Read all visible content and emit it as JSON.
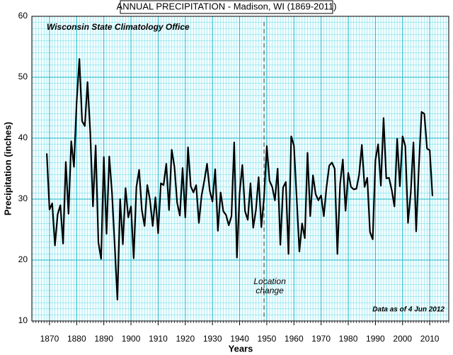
{
  "chart_data": {
    "type": "line",
    "title": "ANNUAL PRECIPITATION - Madison, WI (1869-2011)",
    "subtitle": "Wisconsin State Climatology Office",
    "note": "Data as of 4 Jun 2012",
    "x_label": "Years",
    "y_label": "Precipitation (inches)",
    "color": "#000000",
    "grid": true,
    "xlim": [
      1863.5,
      2017
    ],
    "ylim": [
      10,
      60
    ],
    "xticks": [
      1870,
      1880,
      1890,
      1900,
      1910,
      1920,
      1930,
      1940,
      1950,
      1960,
      1970,
      1980,
      1990,
      2000,
      2010
    ],
    "yticks": [
      10,
      20,
      30,
      40,
      50,
      60
    ],
    "annotation": {
      "text": [
        "Location",
        "change"
      ],
      "x": 1949
    },
    "x": [
      1869,
      1870,
      1871,
      1872,
      1873,
      1874,
      1875,
      1876,
      1877,
      1878,
      1879,
      1880,
      1881,
      1882,
      1883,
      1884,
      1885,
      1886,
      1887,
      1888,
      1889,
      1890,
      1891,
      1892,
      1893,
      1894,
      1895,
      1896,
      1897,
      1898,
      1899,
      1900,
      1901,
      1902,
      1903,
      1904,
      1905,
      1906,
      1907,
      1908,
      1909,
      1910,
      1911,
      1912,
      1913,
      1914,
      1915,
      1916,
      1917,
      1918,
      1919,
      1920,
      1921,
      1922,
      1923,
      1924,
      1925,
      1926,
      1927,
      1928,
      1929,
      1930,
      1931,
      1932,
      1933,
      1934,
      1935,
      1936,
      1937,
      1938,
      1939,
      1940,
      1941,
      1942,
      1943,
      1944,
      1945,
      1946,
      1947,
      1948,
      1949,
      1950,
      1951,
      1952,
      1953,
      1954,
      1955,
      1956,
      1957,
      1958,
      1959,
      1960,
      1961,
      1962,
      1963,
      1964,
      1965,
      1966,
      1967,
      1968,
      1969,
      1970,
      1971,
      1972,
      1973,
      1974,
      1975,
      1976,
      1977,
      1978,
      1979,
      1980,
      1981,
      1982,
      1983,
      1984,
      1985,
      1986,
      1987,
      1988,
      1989,
      1990,
      1991,
      1992,
      1993,
      1994,
      1995,
      1996,
      1997,
      1998,
      1999,
      2000,
      2001,
      2002,
      2003,
      2004,
      2005,
      2006,
      2007,
      2008,
      2009,
      2010,
      2011
    ],
    "values": [
      37.5,
      28.3,
      29.3,
      22.4,
      27.5,
      29.0,
      22.7,
      36.1,
      27.6,
      39.5,
      35.3,
      46.0,
      53.0,
      42.8,
      42.0,
      49.2,
      41.0,
      28.8,
      38.8,
      22.9,
      20.2,
      36.9,
      24.3,
      37.0,
      31.1,
      22.5,
      13.5,
      30.0,
      22.6,
      31.8,
      27.0,
      28.8,
      20.3,
      32.0,
      34.8,
      28.2,
      25.6,
      32.3,
      29.8,
      25.6,
      30.3,
      24.4,
      32.6,
      32.3,
      35.8,
      28.2,
      38.1,
      35.3,
      29.4,
      27.3,
      35.1,
      27.0,
      38.5,
      32.1,
      31.1,
      32.3,
      26.1,
      30.6,
      33.0,
      35.8,
      31.4,
      29.6,
      34.9,
      24.8,
      31.1,
      28.0,
      27.4,
      25.7,
      27.2,
      39.3,
      20.4,
      31.0,
      35.6,
      28.0,
      26.6,
      32.6,
      25.3,
      28.2,
      33.6,
      25.4,
      30.3,
      38.7,
      33.0,
      32.0,
      29.8,
      35.0,
      22.5,
      31.9,
      32.8,
      21.0,
      40.3,
      38.8,
      30.2,
      21.4,
      26.0,
      23.6,
      37.6,
      27.2,
      33.9,
      30.8,
      29.8,
      30.6,
      27.2,
      32.0,
      35.5,
      36.0,
      35.0,
      21.0,
      32.5,
      36.5,
      28.1,
      34.3,
      32.0,
      31.6,
      31.7,
      34.0,
      38.9,
      32.0,
      33.5,
      24.6,
      23.4,
      36.4,
      39.0,
      32.2,
      43.3,
      33.4,
      33.5,
      31.5,
      28.8,
      39.9,
      32.1,
      40.3,
      38.7,
      26.1,
      31.0,
      39.3,
      24.7,
      35.4,
      44.3,
      44.0,
      38.3,
      38.0,
      30.5
    ]
  }
}
